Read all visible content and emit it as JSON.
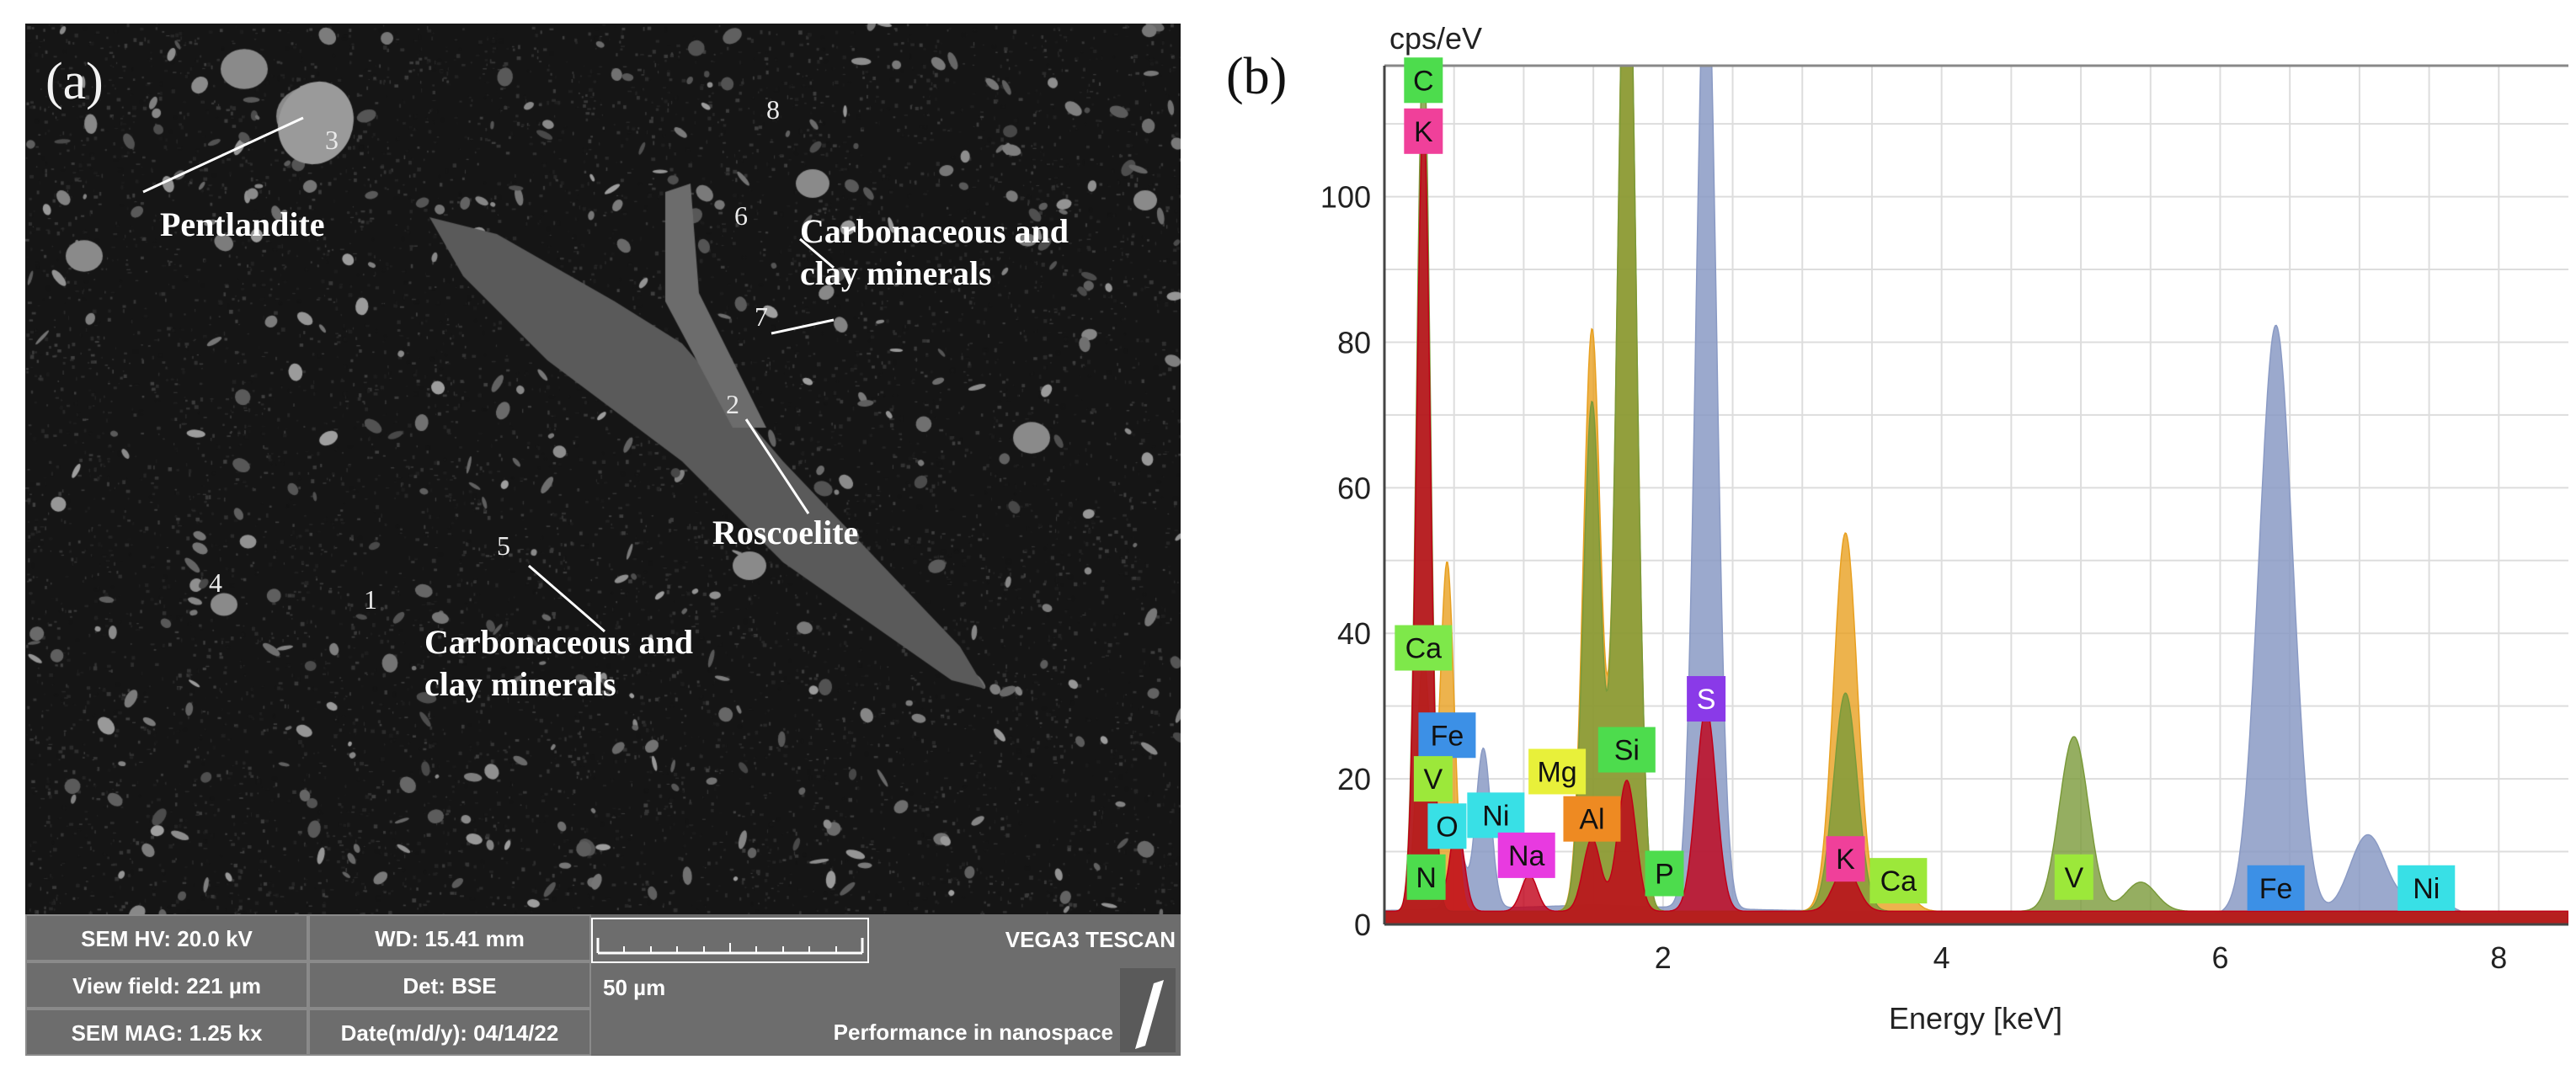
{
  "panel_a": {
    "label": "(a)",
    "annotations": [
      {
        "id": "pentlandite",
        "text": "Pentlandite"
      },
      {
        "id": "carb1",
        "text": "Carbonaceous and\nclay minerals"
      },
      {
        "id": "roscoelite",
        "text": "Roscoelite"
      },
      {
        "id": "carb2",
        "text": "Carbonaceous and\nclay minerals"
      }
    ],
    "point_numbers": [
      "1",
      "2",
      "3",
      "4",
      "5",
      "6",
      "7",
      "8"
    ],
    "info_bar": {
      "sem_hv": "SEM HV: 20.0 kV",
      "wd": "WD: 15.41 mm",
      "view_field": "View field: 221 µm",
      "detector": "Det: BSE",
      "sem_mag": "SEM MAG: 1.25 kx",
      "date": "Date(m/d/y): 04/14/22",
      "scale_bar": "50 µm",
      "instrument": "VEGA3 TESCAN",
      "slogan": "Performance in nanospace"
    }
  },
  "panel_b": {
    "label": "(b)"
  },
  "chart_data": {
    "type": "line",
    "title": "",
    "ylabel": "cps/eV",
    "xlabel": "Energy [keV]",
    "xlim": [
      0,
      8.5
    ],
    "ylim": [
      0,
      118
    ],
    "x_ticks": [
      2,
      4,
      6,
      8
    ],
    "y_ticks": [
      0,
      20,
      40,
      60,
      80,
      100
    ],
    "grid": true,
    "series": [
      {
        "name": "spectrum-blue",
        "color": "#8a9ac4",
        "peaks": [
          [
            0.52,
            10
          ],
          [
            0.71,
            22
          ],
          [
            2.31,
            135
          ],
          [
            6.4,
            81
          ],
          [
            7.06,
            11
          ],
          [
            7.48,
            3
          ]
        ]
      },
      {
        "name": "spectrum-orange",
        "color": "#e8a020",
        "peaks": [
          [
            0.28,
            35
          ],
          [
            0.45,
            48
          ],
          [
            1.49,
            80
          ],
          [
            1.74,
            145
          ],
          [
            3.31,
            52
          ],
          [
            3.69,
            4
          ]
        ]
      },
      {
        "name": "spectrum-olive",
        "color": "#7a9a3a",
        "peaks": [
          [
            0.28,
            120
          ],
          [
            1.49,
            70
          ],
          [
            1.74,
            145
          ],
          [
            3.31,
            30
          ],
          [
            4.95,
            24
          ],
          [
            5.43,
            4
          ]
        ]
      },
      {
        "name": "spectrum-red",
        "color": "#c00018",
        "peaks": [
          [
            0.28,
            110
          ],
          [
            0.52,
            12
          ],
          [
            1.04,
            5
          ],
          [
            1.49,
            10
          ],
          [
            1.74,
            18
          ],
          [
            2.31,
            28
          ],
          [
            3.31,
            6
          ]
        ]
      }
    ],
    "element_labels": [
      {
        "text": "C",
        "x": 0.28,
        "y": 116,
        "color": "#4ddc4d"
      },
      {
        "text": "K",
        "x": 0.28,
        "y": 109,
        "color": "#f0409a"
      },
      {
        "text": "Ca",
        "x": 0.28,
        "y": 38,
        "color": "#7ee84a"
      },
      {
        "text": "Fe",
        "x": 0.45,
        "y": 26,
        "color": "#3c90e6"
      },
      {
        "text": "V",
        "x": 0.35,
        "y": 20,
        "color": "#9ce83a"
      },
      {
        "text": "O",
        "x": 0.45,
        "y": 13.5,
        "color": "#38e0e6"
      },
      {
        "text": "Ni",
        "x": 0.8,
        "y": 15,
        "color": "#38e0e6"
      },
      {
        "text": "Na",
        "x": 1.02,
        "y": 9.5,
        "color": "#e83ae0"
      },
      {
        "text": "N",
        "x": 0.3,
        "y": 6.5,
        "color": "#4ddc4d"
      },
      {
        "text": "Mg",
        "x": 1.24,
        "y": 21,
        "color": "#e8f03a"
      },
      {
        "text": "Al",
        "x": 1.49,
        "y": 14.5,
        "color": "#ee8a22"
      },
      {
        "text": "Si",
        "x": 1.74,
        "y": 24,
        "color": "#4ddc4d"
      },
      {
        "text": "P",
        "x": 2.01,
        "y": 7,
        "color": "#4ddc4d"
      },
      {
        "text": "S",
        "x": 2.31,
        "y": 31,
        "color": "#8a3ae8"
      },
      {
        "text": "K",
        "x": 3.31,
        "y": 9,
        "color": "#f0409a"
      },
      {
        "text": "Ca",
        "x": 3.69,
        "y": 6,
        "color": "#9ce83a"
      },
      {
        "text": "V",
        "x": 4.95,
        "y": 6.5,
        "color": "#9ce83a"
      },
      {
        "text": "Fe",
        "x": 6.4,
        "y": 5,
        "color": "#3c90e6"
      },
      {
        "text": "Ni",
        "x": 7.48,
        "y": 5,
        "color": "#38e0e6"
      }
    ]
  }
}
